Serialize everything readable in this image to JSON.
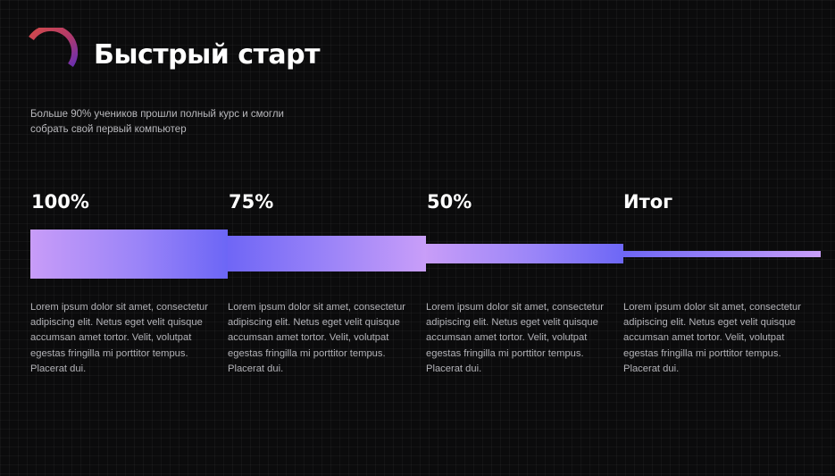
{
  "header": {
    "title": "Быстрый старт",
    "subtitle": "Больше 90% учеников прошли полный курс и смогли собрать свой первый компьютер",
    "logo_icon": "arc-ring-icon"
  },
  "stages": [
    {
      "label": "100%",
      "level": 1.0,
      "text": "Lorem ipsum dolor sit amet, consectetur adipiscing elit. Netus eget velit quisque accumsan amet tortor. Velit, volutpat egestas fringilla mi porttitor tempus. Placerat dui."
    },
    {
      "label": "75%",
      "level": 0.75,
      "text": "Lorem ipsum dolor sit amet, consectetur adipiscing elit. Netus eget velit quisque accumsan amet tortor. Velit, volutpat egestas fringilla mi porttitor tempus. Placerat dui."
    },
    {
      "label": "50%",
      "level": 0.5,
      "text": "Lorem ipsum dolor sit amet, consectetur adipiscing elit. Netus eget velit quisque accumsan amet tortor. Velit, volutpat egestas fringilla mi porttitor tempus. Placerat dui."
    },
    {
      "label": "Итог",
      "text": "Lorem ipsum dolor sit amet, consectetur adipiscing elit. Netus eget velit quisque accumsan amet tortor. Velit, volutpat egestas fringilla mi porttitor tempus. Placerat dui."
    }
  ],
  "colors": {
    "background": "#0b0b0c",
    "gradient_violet": "#c89cf8",
    "gradient_blue": "#6c66f6",
    "logo_red": "#d24a4a",
    "logo_purple": "#6a2fb0"
  }
}
